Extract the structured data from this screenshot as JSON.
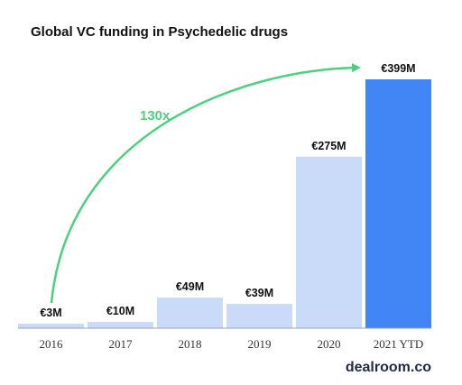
{
  "chart_data": {
    "type": "bar",
    "title": "Global VC funding in Psychedelic drugs",
    "categories": [
      "2016",
      "2017",
      "2018",
      "2019",
      "2020",
      "2021 YTD"
    ],
    "values": [
      3,
      10,
      49,
      39,
      275,
      399
    ],
    "value_labels": [
      "€3M",
      "€10M",
      "€49M",
      "€39M",
      "€275M",
      "€399M"
    ],
    "unit": "€M",
    "highlight_index": 5,
    "annotation": "130x",
    "xlabel": "",
    "ylabel": "",
    "grid": false,
    "legend": "none"
  },
  "colors": {
    "bar": "#c9dbf9",
    "highlight_bar": "#4285f4",
    "arrow": "#4cd07d",
    "axis": "#9aa3ad"
  },
  "brand": "dealroom.co"
}
